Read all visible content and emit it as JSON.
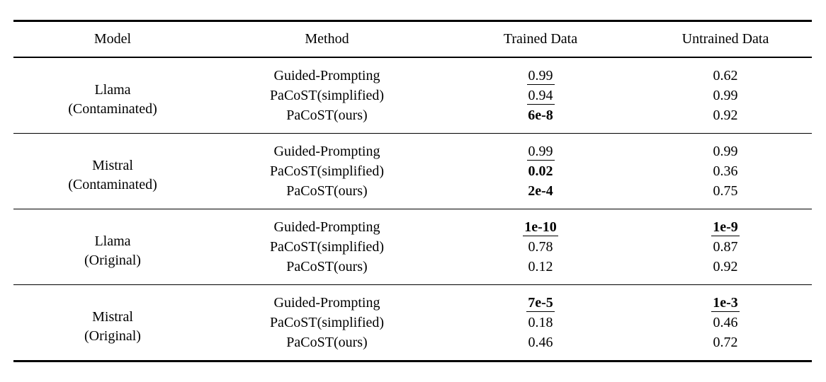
{
  "page": {
    "background_color": "#ffffff",
    "text_color": "#000000",
    "rule_color": "#000000"
  },
  "table": {
    "headers": [
      "Model",
      "Method",
      "Trained Data",
      "Untrained Data"
    ],
    "groups": [
      {
        "model": "Llama",
        "variant": "(Contaminated)",
        "rows": [
          {
            "method": "Guided-Prompting",
            "trained": {
              "text": "0.99",
              "style": "u"
            },
            "untrained": {
              "text": "0.62",
              "style": ""
            }
          },
          {
            "method": "PaCoST(simplified)",
            "trained": {
              "text": "0.94",
              "style": "u"
            },
            "untrained": {
              "text": "0.99",
              "style": ""
            }
          },
          {
            "method": "PaCoST(ours)",
            "trained": {
              "text": "6e-8",
              "style": "b"
            },
            "untrained": {
              "text": "0.92",
              "style": ""
            }
          }
        ]
      },
      {
        "model": "Mistral",
        "variant": "(Contaminated)",
        "rows": [
          {
            "method": "Guided-Prompting",
            "trained": {
              "text": "0.99",
              "style": "u"
            },
            "untrained": {
              "text": "0.99",
              "style": ""
            }
          },
          {
            "method": "PaCoST(simplified)",
            "trained": {
              "text": "0.02",
              "style": "b"
            },
            "untrained": {
              "text": "0.36",
              "style": ""
            }
          },
          {
            "method": "PaCoST(ours)",
            "trained": {
              "text": "2e-4",
              "style": "b"
            },
            "untrained": {
              "text": "0.75",
              "style": ""
            }
          }
        ]
      },
      {
        "model": "Llama",
        "variant": "(Original)",
        "rows": [
          {
            "method": "Guided-Prompting",
            "trained": {
              "text": "1e-10",
              "style": "bu"
            },
            "untrained": {
              "text": "1e-9",
              "style": "bu"
            }
          },
          {
            "method": "PaCoST(simplified)",
            "trained": {
              "text": "0.78",
              "style": ""
            },
            "untrained": {
              "text": "0.87",
              "style": ""
            }
          },
          {
            "method": "PaCoST(ours)",
            "trained": {
              "text": "0.12",
              "style": ""
            },
            "untrained": {
              "text": "0.92",
              "style": ""
            }
          }
        ]
      },
      {
        "model": "Mistral",
        "variant": "(Original)",
        "rows": [
          {
            "method": "Guided-Prompting",
            "trained": {
              "text": "7e-5",
              "style": "bu"
            },
            "untrained": {
              "text": "1e-3",
              "style": "bu"
            }
          },
          {
            "method": "PaCoST(simplified)",
            "trained": {
              "text": "0.18",
              "style": ""
            },
            "untrained": {
              "text": "0.46",
              "style": ""
            }
          },
          {
            "method": "PaCoST(ours)",
            "trained": {
              "text": "0.46",
              "style": ""
            },
            "untrained": {
              "text": "0.72",
              "style": ""
            }
          }
        ]
      }
    ]
  }
}
